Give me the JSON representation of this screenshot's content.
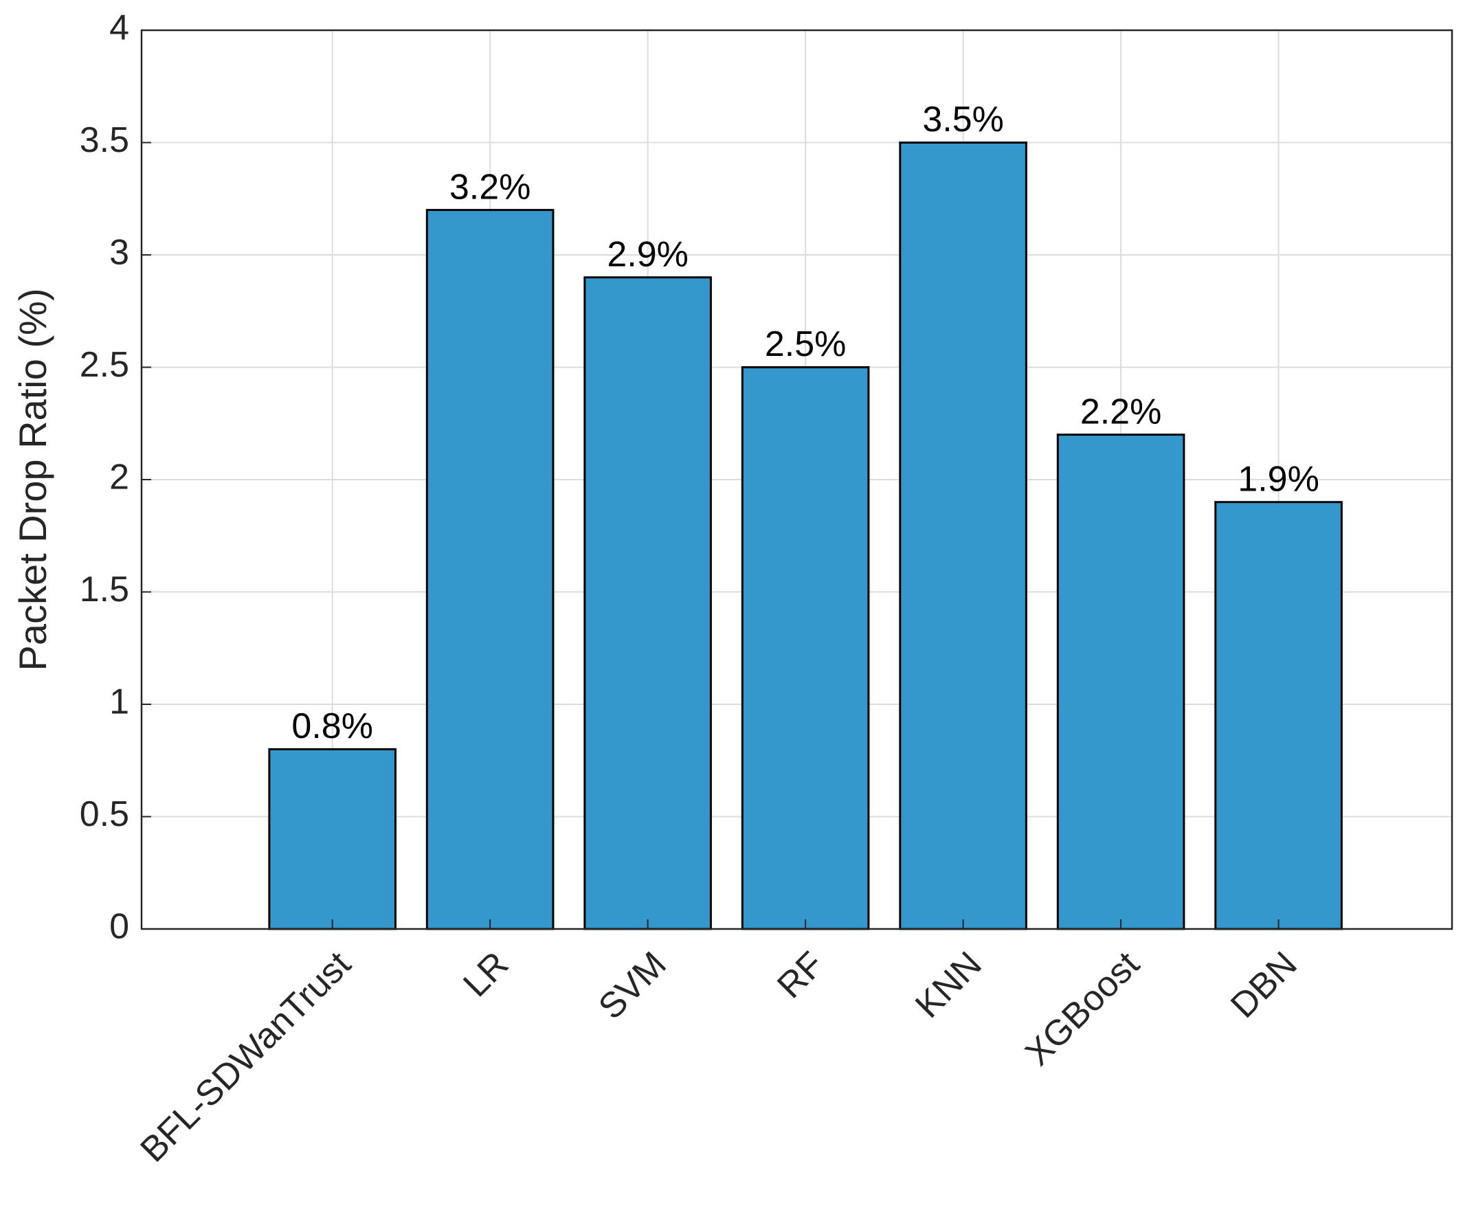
{
  "chart_data": {
    "type": "bar",
    "ylabel": "Packet Drop Ratio (%)",
    "categories": [
      "BFL-SDWanTrust",
      "LR",
      "SVM",
      "RF",
      "KNN",
      "XGBoost",
      "DBN"
    ],
    "values": [
      0.8,
      3.2,
      2.9,
      2.5,
      3.5,
      2.2,
      1.9
    ],
    "value_labels": [
      "0.8%",
      "3.2%",
      "2.9%",
      "2.5%",
      "3.5%",
      "2.2%",
      "1.9%"
    ],
    "color": "#3498cc",
    "ylim": [
      0,
      4
    ],
    "yticks": [
      0,
      0.5,
      1,
      1.5,
      2,
      2.5,
      3,
      3.5,
      4
    ],
    "grid": true
  }
}
